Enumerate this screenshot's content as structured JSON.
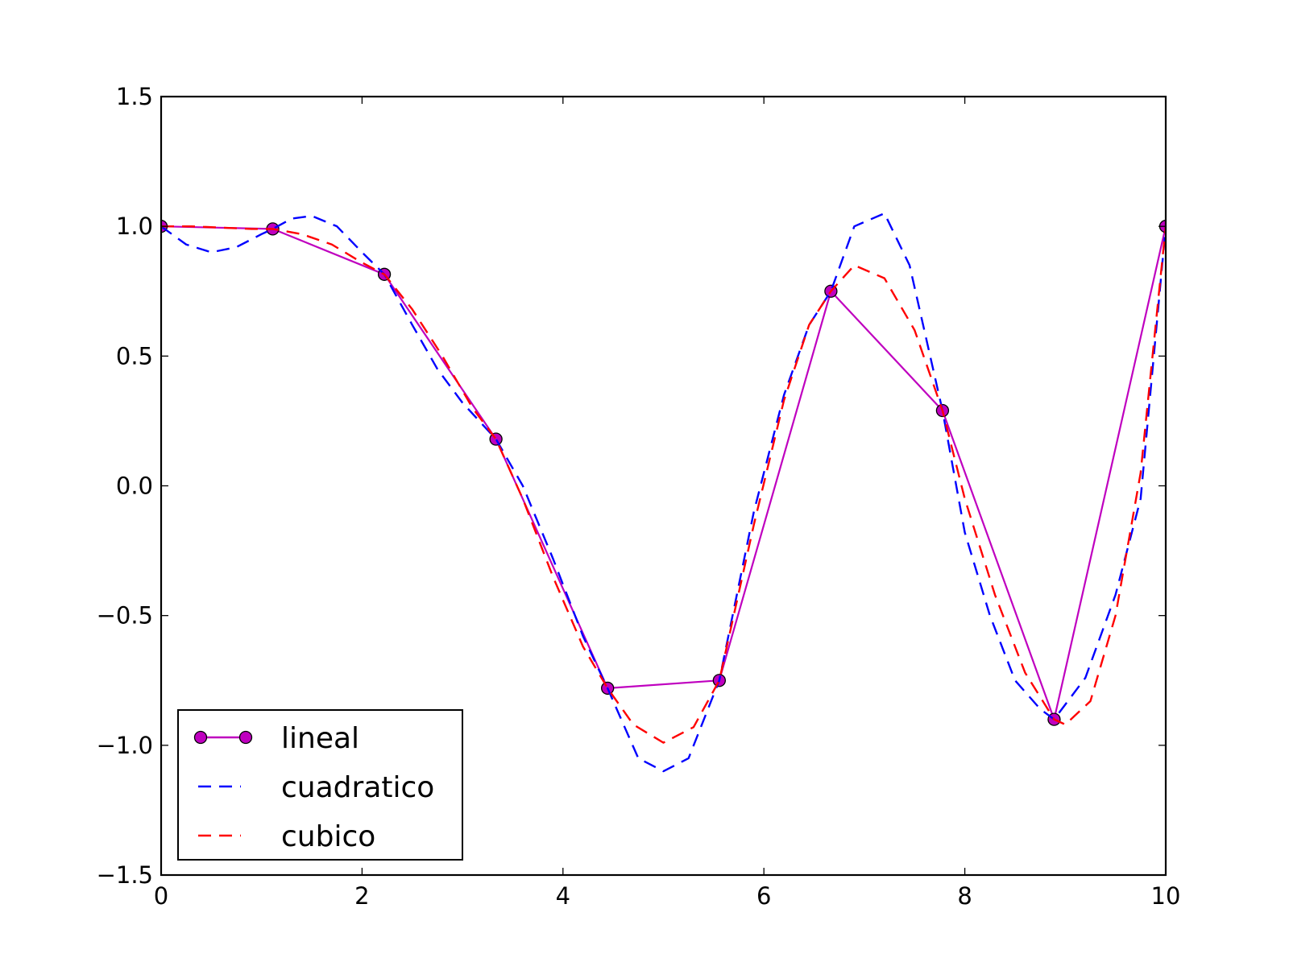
{
  "chart_data": {
    "type": "line",
    "title": "",
    "xlabel": "",
    "ylabel": "",
    "xlim": [
      0,
      10
    ],
    "ylim": [
      -1.5,
      1.5
    ],
    "xticks": [
      0,
      2,
      4,
      6,
      8,
      10
    ],
    "xtick_labels": [
      "0",
      "2",
      "4",
      "6",
      "8",
      "10"
    ],
    "yticks": [
      -1.5,
      -1.0,
      -0.5,
      0.0,
      0.5,
      1.0,
      1.5
    ],
    "ytick_labels": [
      "−1.5",
      "−1.0",
      "−0.5",
      "0.0",
      "0.5",
      "1.0",
      "1.5"
    ],
    "grid": false,
    "legend_position": "lower-left",
    "series": [
      {
        "name": "lineal",
        "color": "#bf00bf",
        "style": "solid",
        "marker": "circle",
        "x": [
          0,
          1.111,
          2.222,
          3.333,
          4.444,
          5.556,
          6.667,
          7.778,
          8.889,
          10
        ],
        "y": [
          1.0,
          0.99,
          0.815,
          0.18,
          -0.78,
          -0.75,
          0.75,
          0.29,
          -0.9,
          1.0
        ]
      },
      {
        "name": "cuadratico",
        "color": "#0000ff",
        "style": "dashed",
        "marker": "none",
        "x": [
          0,
          0.25,
          0.5,
          0.75,
          1.0,
          1.111,
          1.3,
          1.5,
          1.75,
          2.0,
          2.222,
          2.5,
          2.75,
          3.0,
          3.333,
          3.6,
          3.9,
          4.2,
          4.444,
          4.75,
          5.0,
          5.25,
          5.556,
          5.9,
          6.2,
          6.45,
          6.667,
          6.9,
          7.2,
          7.45,
          7.778,
          8.0,
          8.25,
          8.5,
          8.75,
          8.889,
          9.2,
          9.5,
          9.75,
          10
        ],
        "y": [
          1.0,
          0.93,
          0.9,
          0.92,
          0.97,
          0.99,
          1.03,
          1.04,
          1.0,
          0.9,
          0.815,
          0.62,
          0.45,
          0.32,
          0.18,
          0.0,
          -0.28,
          -0.58,
          -0.78,
          -1.05,
          -1.1,
          -1.05,
          -0.75,
          -0.1,
          0.35,
          0.62,
          0.75,
          1.0,
          1.05,
          0.85,
          0.29,
          -0.18,
          -0.5,
          -0.75,
          -0.86,
          -0.9,
          -0.74,
          -0.42,
          -0.05,
          1.0
        ]
      },
      {
        "name": "cubico",
        "color": "#ff0000",
        "style": "dashed",
        "marker": "none",
        "x": [
          0,
          0.3,
          0.6,
          0.9,
          1.111,
          1.4,
          1.7,
          2.0,
          2.222,
          2.5,
          2.8,
          3.1,
          3.333,
          3.6,
          3.9,
          4.2,
          4.444,
          4.7,
          5.0,
          5.3,
          5.556,
          5.9,
          6.2,
          6.45,
          6.667,
          6.9,
          7.2,
          7.5,
          7.778,
          8.0,
          8.3,
          8.6,
          8.889,
          9.0,
          9.25,
          9.5,
          9.75,
          10
        ],
        "y": [
          1.0,
          1.0,
          0.995,
          0.99,
          0.99,
          0.97,
          0.93,
          0.86,
          0.815,
          0.68,
          0.5,
          0.3,
          0.18,
          -0.05,
          -0.35,
          -0.62,
          -0.78,
          -0.92,
          -0.99,
          -0.93,
          -0.75,
          -0.15,
          0.33,
          0.62,
          0.75,
          0.85,
          0.8,
          0.6,
          0.29,
          -0.05,
          -0.42,
          -0.72,
          -0.9,
          -0.92,
          -0.83,
          -0.5,
          0.05,
          1.0
        ]
      }
    ]
  }
}
